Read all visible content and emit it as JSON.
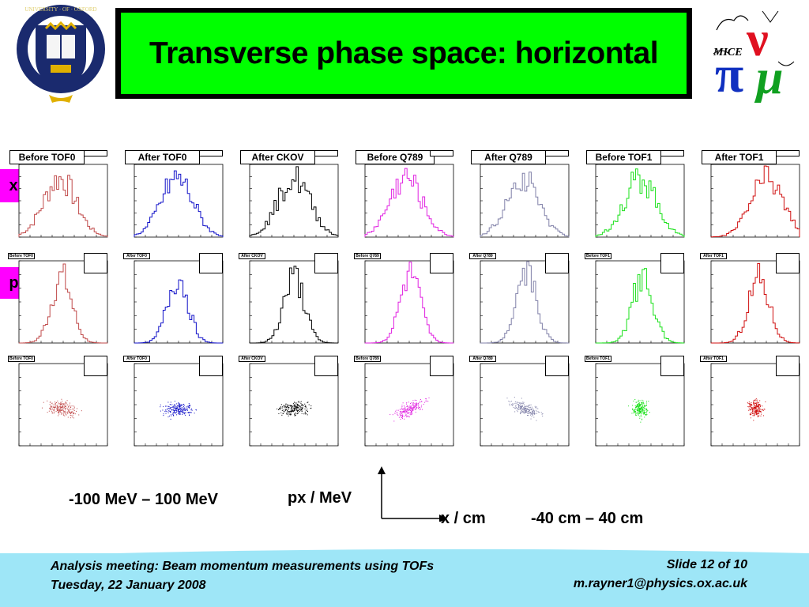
{
  "slide": {
    "title": "Transverse phase space: horizontal",
    "row_labels": [
      "x",
      "px"
    ],
    "columns": [
      "Before TOF0",
      "After TOF0",
      "After CKOV",
      "Before Q789",
      "After Q789",
      "Before TOF1",
      "After TOF1"
    ],
    "colors": [
      "#c04a4a",
      "#1010c8",
      "#000000",
      "#e020e0",
      "#8080a8",
      "#18e018",
      "#d01010"
    ],
    "accent_title_bg": "#00ff00",
    "row_label_bg": "#ff00ff",
    "footer_bg": "#9ee6f7",
    "px_range": "-100 MeV – 100 MeV",
    "px_axis": "px / MeV",
    "x_axis": "x / cm",
    "x_range": "-40 cm – 40 cm"
  },
  "logos": {
    "left": "oxford-crest",
    "right": "mice-logo",
    "mice_text": "MICE"
  },
  "footer": {
    "line1": "Analysis meeting: Beam momentum measurements using TOFs",
    "line2": "Tuesday, 22 January 2008",
    "slide_no": "Slide 12 of 10",
    "email": "m.rayner1@physics.ox.ac.uk"
  }
}
